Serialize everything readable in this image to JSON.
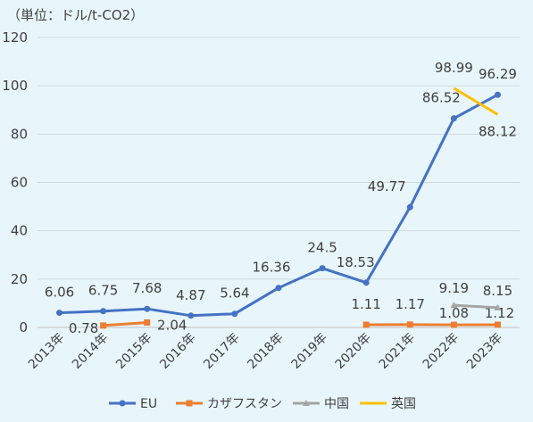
{
  "chart_data": {
    "type": "line",
    "unit_label": "（単位：ドル/t-CO2）",
    "categories": [
      "2013年",
      "2014年",
      "2015年",
      "2016年",
      "2017年",
      "2018年",
      "2019年",
      "2020年",
      "2021年",
      "2022年",
      "2023年"
    ],
    "ylim": [
      0,
      120
    ],
    "yticks": [
      0,
      20,
      40,
      60,
      80,
      100,
      120
    ],
    "grid": true,
    "legend_position": "bottom",
    "series": [
      {
        "name": "EU",
        "color": "#4472c4",
        "marker": "circle",
        "values": [
          6.06,
          6.75,
          7.68,
          4.87,
          5.64,
          16.36,
          24.5,
          18.53,
          49.77,
          86.52,
          96.29
        ],
        "labels": [
          "6.06",
          "6.75",
          "7.68",
          "4.87",
          "5.64",
          "16.36",
          "24.5",
          "18.53",
          "49.77",
          "86.52",
          "96.29"
        ]
      },
      {
        "name": "カザフスタン",
        "color": "#ed7d31",
        "marker": "square",
        "values": [
          null,
          0.78,
          2.04,
          null,
          null,
          null,
          null,
          1.11,
          1.17,
          1.08,
          1.12
        ],
        "labels": [
          null,
          "0.78",
          "2.04",
          null,
          null,
          null,
          null,
          "1.11",
          "1.17",
          "1.08",
          "1.12"
        ]
      },
      {
        "name": "中国",
        "color": "#a5a5a5",
        "marker": "triangle",
        "values": [
          null,
          null,
          null,
          null,
          null,
          null,
          null,
          null,
          null,
          9.19,
          8.15
        ],
        "labels": [
          null,
          null,
          null,
          null,
          null,
          null,
          null,
          null,
          null,
          "9.19",
          "8.15"
        ]
      },
      {
        "name": "英国",
        "color": "#ffc000",
        "marker": "line",
        "values": [
          null,
          null,
          null,
          null,
          null,
          null,
          null,
          null,
          null,
          98.99,
          88.12
        ],
        "labels": [
          null,
          null,
          null,
          null,
          null,
          null,
          null,
          null,
          null,
          "98.99",
          "88.12"
        ]
      }
    ]
  }
}
